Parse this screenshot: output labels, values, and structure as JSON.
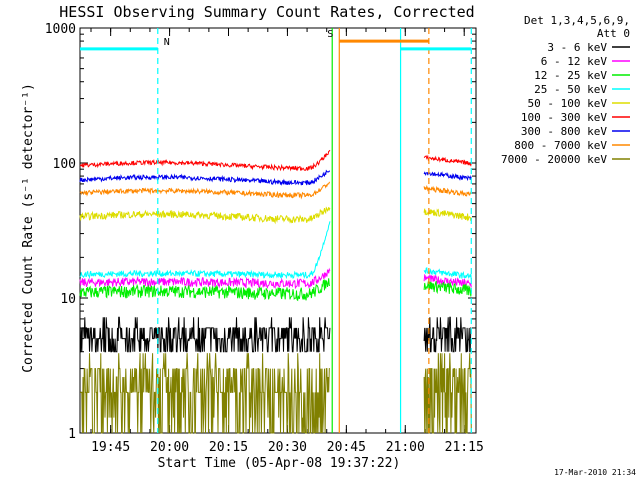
{
  "chart_data": {
    "type": "line",
    "title": "HESSI Observing Summary Count Rates, Corrected",
    "xlabel": "Start Time (05-Apr-08 19:37:22)",
    "ylabel": "Corrected Count Rate (s⁻¹ detector⁻¹)",
    "ylog": true,
    "ylim": [
      1,
      1000
    ],
    "xlim_minutes": [
      19.62,
      21.3
    ],
    "x_ticks": [
      "19:45",
      "20:00",
      "20:15",
      "20:30",
      "20:45",
      "21:00",
      "21:15"
    ],
    "y_ticks": [
      "1",
      "10",
      "100",
      "1000"
    ],
    "legend_header": [
      "Det 1,3,4,5,6,9,",
      "Att 0"
    ],
    "legend_position": "right",
    "timestamp": "17-Mar-2010 21:34",
    "series": [
      {
        "name": "3 - 6 keV",
        "color": "#000000",
        "level": 5.0,
        "noise": 0.9,
        "curve": 0.0,
        "rise": 0.0,
        "post": 5.0
      },
      {
        "name": "6 - 12 keV",
        "color": "#ff00ff",
        "level": 13.0,
        "noise": 1.0,
        "curve": 0.3,
        "rise": 0.1,
        "post": 14.0
      },
      {
        "name": "12 - 25 keV",
        "color": "#00ee00",
        "level": 11.0,
        "noise": 1.2,
        "curve": 0.4,
        "rise": 0.1,
        "post": 12.5
      },
      {
        "name": "25 - 50 keV",
        "color": "#00ffff",
        "level": 15.0,
        "noise": 0.8,
        "curve": 0.3,
        "rise": 1.3,
        "post": 16.0
      },
      {
        "name": "50 - 100 keV",
        "color": "#dddd00",
        "level": 40.0,
        "noise": 2.5,
        "curve": 3.0,
        "rise": 0.1,
        "post": 44.0
      },
      {
        "name": "100 - 300 keV",
        "color": "#ff0000",
        "level": 96.0,
        "noise": 3.5,
        "curve": 8.0,
        "rise": 0.2,
        "post": 110.0
      },
      {
        "name": "300 - 800 keV",
        "color": "#0000ee",
        "level": 75.0,
        "noise": 3.0,
        "curve": 6.0,
        "rise": 0.1,
        "post": 85.0
      },
      {
        "name": "800 - 7000 keV",
        "color": "#ff8800",
        "level": 60.0,
        "noise": 2.5,
        "curve": 4.0,
        "rise": 0.1,
        "post": 65.0
      },
      {
        "name": "7000 - 20000 keV",
        "color": "#808000",
        "level": 2.6,
        "noise": 1.0,
        "curve": 0.0,
        "rise": 0.0,
        "post": 2.2
      }
    ],
    "segments": {
      "data1": [
        19.62,
        20.68
      ],
      "data2": [
        21.08,
        21.28
      ]
    },
    "flags": [
      {
        "label": "N",
        "color": "#00ffff",
        "value": 700,
        "x0": 19.62,
        "x1": 19.95
      },
      {
        "label": "",
        "color": "#00ffff",
        "value": 700,
        "x0": 20.98,
        "x1": 21.28
      },
      {
        "label": "S",
        "color": "#ff8800",
        "value": 800,
        "x0": 20.72,
        "x1": 21.1
      }
    ],
    "vlines": [
      {
        "x": 19.95,
        "color": "#00ffff",
        "dash": true
      },
      {
        "x": 20.98,
        "color": "#00ffff",
        "dash": false
      },
      {
        "x": 21.28,
        "color": "#00ffff",
        "dash": true
      },
      {
        "x": 20.72,
        "color": "#ff8800",
        "dash": false
      },
      {
        "x": 21.1,
        "color": "#ff8800",
        "dash": true
      },
      {
        "x": 20.69,
        "color": "#00ee00",
        "dash": false
      }
    ]
  }
}
